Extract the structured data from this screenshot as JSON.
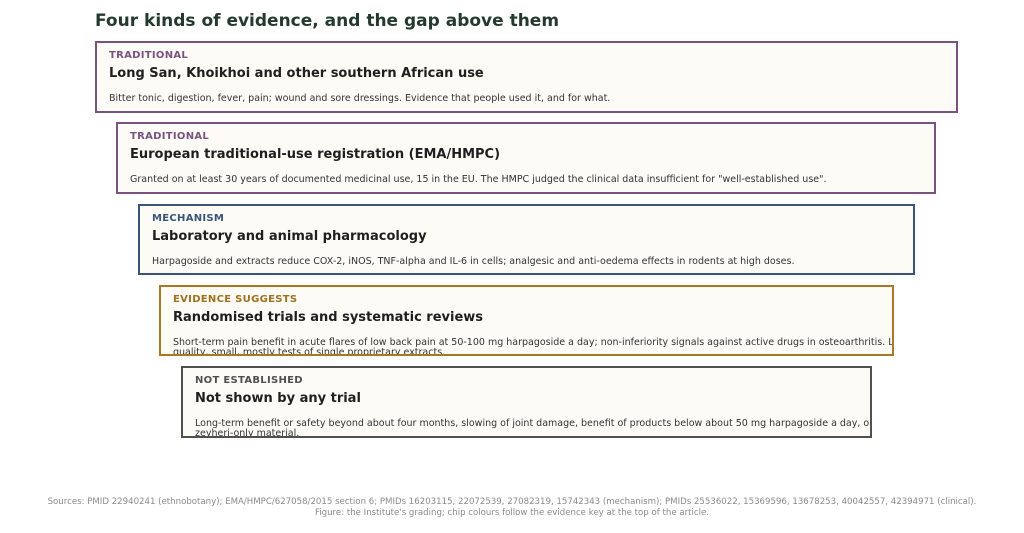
{
  "title": "Four kinds of evidence, and the gap above them",
  "cards": [
    {
      "kind": "TRADITIONAL",
      "heading": "Long San, Khoikhoi and other southern African use",
      "description": "Bitter tonic, digestion, fever, pain; wound and sore dressings. Evidence that people used it, and for what.",
      "color": "#7a527f"
    },
    {
      "kind": "TRADITIONAL",
      "heading": "European traditional-use registration (EMA/HMPC)",
      "description": "Granted on at least 30 years of documented medicinal use, 15 in the EU. The HMPC judged the clinical data insufficient for \"well-established use\".",
      "color": "#7a527f"
    },
    {
      "kind": "MECHANISM",
      "heading": "Laboratory and animal pharmacology",
      "description": "Harpagoside and extracts reduce COX-2, iNOS, TNF-alpha and IL-6 in cells; analgesic and anti-oedema effects in rodents at high doses.",
      "color": "#3a5478"
    },
    {
      "kind": "EVIDENCE SUGGESTS",
      "heading": "Randomised trials and systematic reviews",
      "description": "Short-term pain benefit in acute flares of low back pain at 50-100 mg harpagoside a day; non-inferiority signals against active drugs in osteoarthritis. Low-quality, small, mostly tests of single proprietary extracts.",
      "color": "#a0701f"
    },
    {
      "kind": "NOT ESTABLISHED",
      "heading": "Not shown by any trial",
      "description": "Long-term benefit or safety beyond about four months, slowing of joint damage, benefit of products below about 50 mg harpagoside a day, or of H. zeyheri-only material.",
      "color": "#505050"
    }
  ],
  "footer": {
    "sources": "Sources: PMID 22940241 (ethnobotany); EMA/HMPC/627058/2015 section 6; PMIDs 16203115, 22072539, 27082319, 15742343 (mechanism); PMIDs 25536022, 15369596, 13678253, 40042557, 42394971 (clinical).",
    "caption": "Figure: the Institute's grading; chip colours follow the evidence key at the top of the article."
  }
}
